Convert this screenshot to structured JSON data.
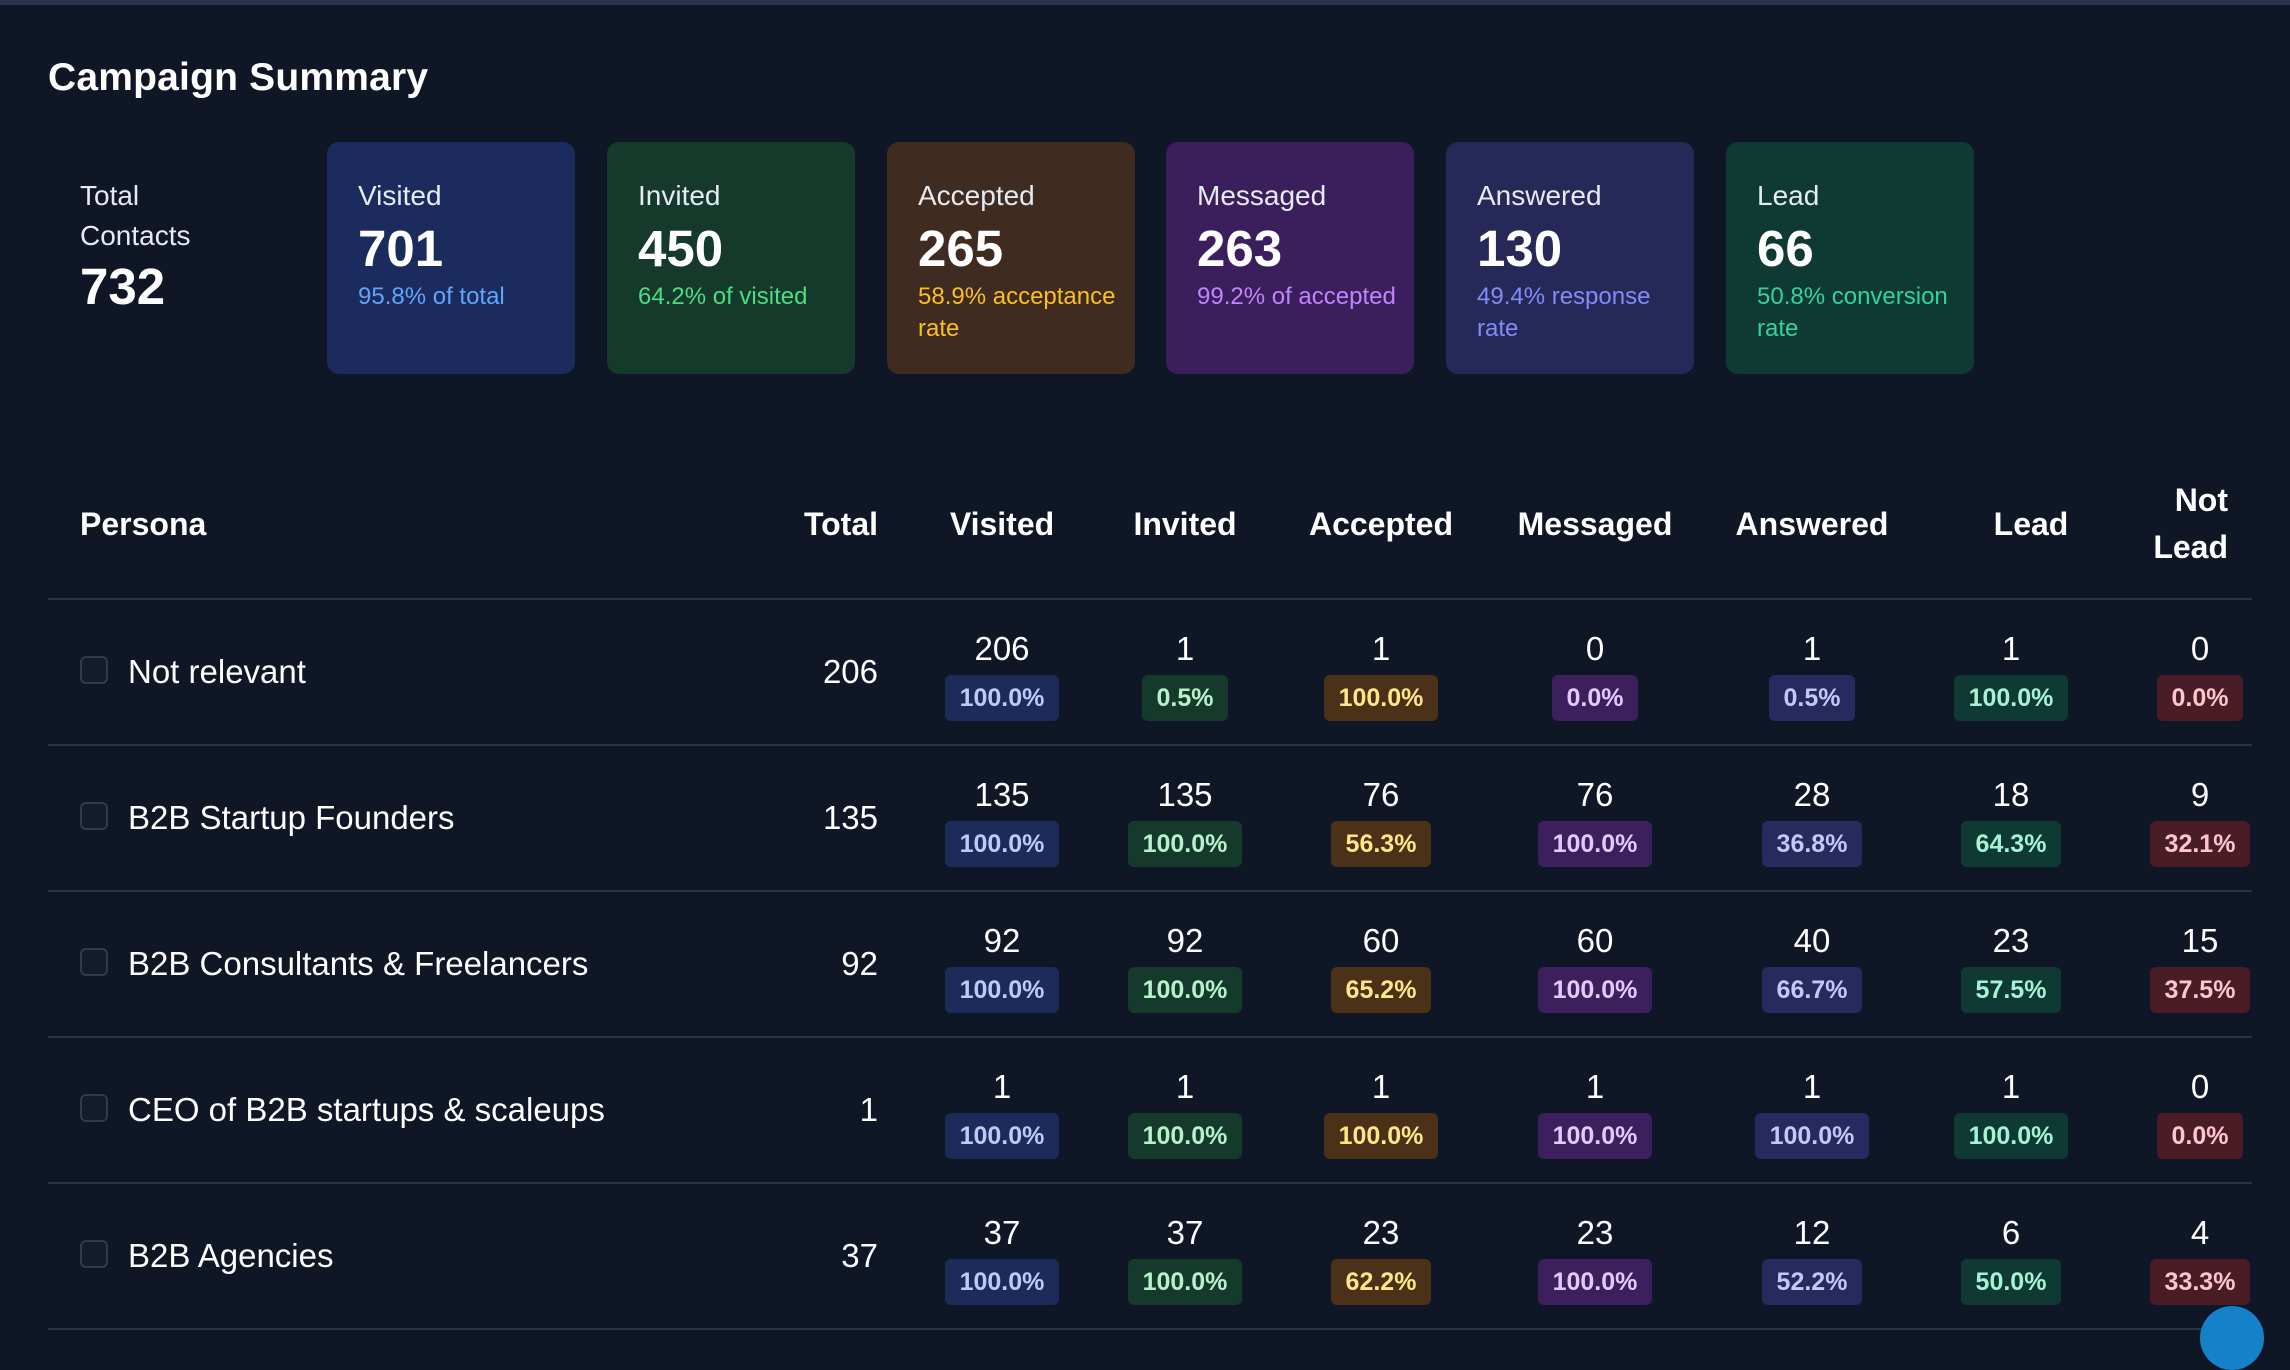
{
  "title": "Campaign Summary",
  "summary": {
    "total": {
      "label": "Total Contacts",
      "value": "732"
    },
    "cards": [
      {
        "label": "Visited",
        "value": "701",
        "sub": "95.8% of total",
        "bg": "#1c2b5e",
        "sub_color": "#60a5fa"
      },
      {
        "label": "Invited",
        "value": "450",
        "sub": "64.2% of visited",
        "bg": "#153a2c",
        "sub_color": "#4ade80"
      },
      {
        "label": "Accepted",
        "value": "265",
        "sub": "58.9% acceptance rate",
        "bg": "#3f2b1f",
        "sub_color": "#fbbf24"
      },
      {
        "label": "Messaged",
        "value": "263",
        "sub": "99.2% of accepted",
        "bg": "#3b1f5c",
        "sub_color": "#c084fc"
      },
      {
        "label": "Answered",
        "value": "130",
        "sub": "49.4% response rate",
        "bg": "#262858",
        "sub_color": "#818cf8"
      },
      {
        "label": "Lead",
        "value": "66",
        "sub": "50.8% conversion rate",
        "bg": "#0f3a33",
        "sub_color": "#34d399"
      }
    ]
  },
  "table": {
    "headers": {
      "persona": "Persona",
      "total": "Total",
      "visited": "Visited",
      "invited": "Invited",
      "accepted": "Accepted",
      "messaged": "Messaged",
      "answered": "Answered",
      "lead": "Lead",
      "not_lead": "Not Lead"
    },
    "rows": [
      {
        "persona": "Not relevant",
        "total": "206",
        "visited": {
          "value": "206",
          "pct": "100.0%"
        },
        "invited": {
          "value": "1",
          "pct": "0.5%"
        },
        "accepted": {
          "value": "1",
          "pct": "100.0%"
        },
        "messaged": {
          "value": "0",
          "pct": "0.0%"
        },
        "answered": {
          "value": "1",
          "pct": "0.5%"
        },
        "lead": {
          "value": "1",
          "pct": "100.0%"
        },
        "not_lead": {
          "value": "0",
          "pct": "0.0%"
        }
      },
      {
        "persona": "B2B Startup Founders",
        "total": "135",
        "visited": {
          "value": "135",
          "pct": "100.0%"
        },
        "invited": {
          "value": "135",
          "pct": "100.0%"
        },
        "accepted": {
          "value": "76",
          "pct": "56.3%"
        },
        "messaged": {
          "value": "76",
          "pct": "100.0%"
        },
        "answered": {
          "value": "28",
          "pct": "36.8%"
        },
        "lead": {
          "value": "18",
          "pct": "64.3%"
        },
        "not_lead": {
          "value": "9",
          "pct": "32.1%"
        }
      },
      {
        "persona": "B2B Consultants & Freelancers",
        "total": "92",
        "visited": {
          "value": "92",
          "pct": "100.0%"
        },
        "invited": {
          "value": "92",
          "pct": "100.0%"
        },
        "accepted": {
          "value": "60",
          "pct": "65.2%"
        },
        "messaged": {
          "value": "60",
          "pct": "100.0%"
        },
        "answered": {
          "value": "40",
          "pct": "66.7%"
        },
        "lead": {
          "value": "23",
          "pct": "57.5%"
        },
        "not_lead": {
          "value": "15",
          "pct": "37.5%"
        }
      },
      {
        "persona": "CEO of B2B startups & scaleups",
        "total": "1",
        "visited": {
          "value": "1",
          "pct": "100.0%"
        },
        "invited": {
          "value": "1",
          "pct": "100.0%"
        },
        "accepted": {
          "value": "1",
          "pct": "100.0%"
        },
        "messaged": {
          "value": "1",
          "pct": "100.0%"
        },
        "answered": {
          "value": "1",
          "pct": "100.0%"
        },
        "lead": {
          "value": "1",
          "pct": "100.0%"
        },
        "not_lead": {
          "value": "0",
          "pct": "0.0%"
        }
      },
      {
        "persona": "B2B Agencies",
        "total": "37",
        "visited": {
          "value": "37",
          "pct": "100.0%"
        },
        "invited": {
          "value": "37",
          "pct": "100.0%"
        },
        "accepted": {
          "value": "23",
          "pct": "62.2%"
        },
        "messaged": {
          "value": "23",
          "pct": "100.0%"
        },
        "answered": {
          "value": "12",
          "pct": "52.2%"
        },
        "lead": {
          "value": "6",
          "pct": "50.0%"
        },
        "not_lead": {
          "value": "4",
          "pct": "33.3%"
        }
      }
    ]
  }
}
